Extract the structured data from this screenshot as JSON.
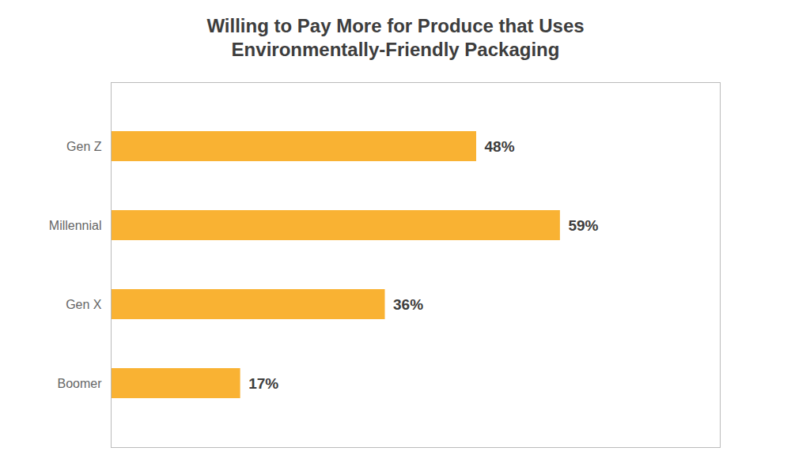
{
  "chart_data": {
    "type": "bar",
    "orientation": "horizontal",
    "title": "Willing to Pay More for Produce that Uses\nEnvironmentally-Friendly Packaging",
    "categories": [
      "Gen Z",
      "Millennial",
      "Gen X",
      "Boomer"
    ],
    "values": [
      48,
      59,
      36,
      17
    ],
    "value_labels": [
      "48%",
      "59%",
      "36%",
      "17%"
    ],
    "color": "#F9B233",
    "xlim": [
      0,
      80
    ],
    "data_labels": true,
    "tick_labels": "y",
    "grid": false
  }
}
